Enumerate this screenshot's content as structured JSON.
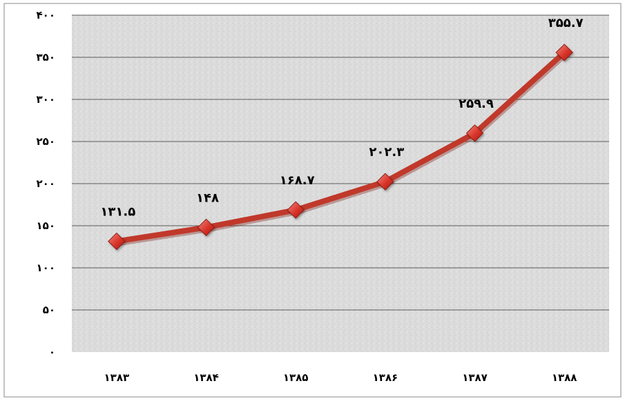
{
  "chart_data": {
    "type": "line",
    "categories": [
      "۱۳۸۳",
      "۱۳۸۴",
      "۱۳۸۵",
      "۱۳۸۶",
      "۱۳۸۷",
      "۱۳۸۸"
    ],
    "series": [
      {
        "values": [
          131.5,
          148,
          168.7,
          202.3,
          259.9,
          355.7
        ],
        "data_labels": [
          "۱۳۱.۵",
          "۱۴۸",
          "۱۶۸.۷",
          "۲۰۲.۳",
          "۲۵۹.۹",
          "۳۵۵.۷"
        ],
        "color": "#c0392b",
        "marker": "diamond"
      }
    ],
    "y_ticks": [
      0,
      50,
      100,
      150,
      200,
      250,
      300,
      350,
      400
    ],
    "y_tick_labels": [
      "۰",
      "۵۰",
      "۱۰۰",
      "۱۵۰",
      "۲۰۰",
      "۲۵۰",
      "۳۰۰",
      "۳۵۰",
      "۴۰۰"
    ],
    "ylim": [
      0,
      400
    ],
    "grid": true,
    "title": "",
    "xlabel": "",
    "ylabel": ""
  }
}
